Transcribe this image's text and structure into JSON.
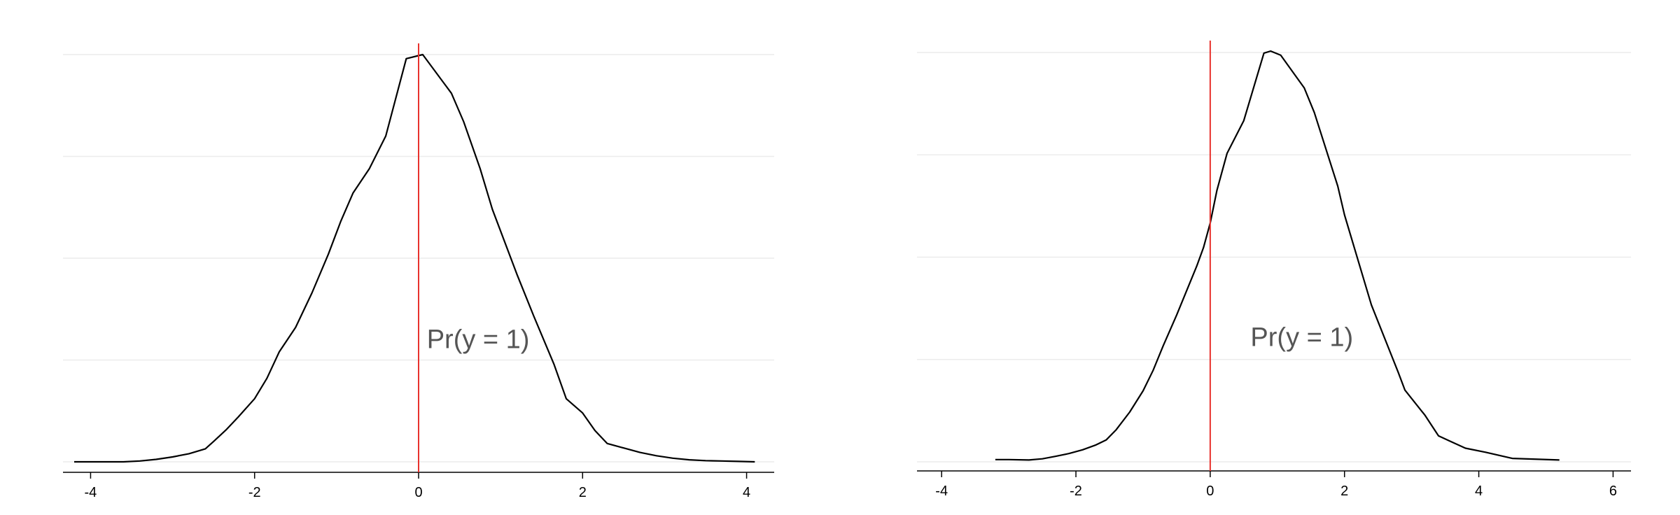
{
  "chart_data": [
    {
      "type": "line",
      "title": "",
      "xlabel": "",
      "ylabel": "",
      "xlim": [
        -4.2,
        4.2
      ],
      "ylim": [
        0,
        1
      ],
      "xticks": [
        "-4",
        "-2",
        "0",
        "2",
        "4"
      ],
      "ygrid_values": [
        0,
        0.25,
        0.5,
        0.75,
        1.0
      ],
      "grid": "horizontal",
      "legend": "none",
      "series": [
        {
          "color": "#000000",
          "x": [
            -4.2,
            -4.0,
            -3.8,
            -3.6,
            -3.4,
            -3.2,
            -3.0,
            -2.8,
            -2.6,
            -2.5,
            -2.35,
            -2.2,
            -2.0,
            -1.85,
            -1.7,
            -1.5,
            -1.3,
            -1.1,
            -0.95,
            -0.8,
            -0.6,
            -0.4,
            -0.15,
            0.05,
            0.4,
            0.55,
            0.75,
            0.9,
            1.2,
            1.4,
            1.65,
            1.8,
            2.0,
            2.15,
            2.3,
            2.5,
            2.7,
            2.9,
            3.1,
            3.3,
            3.5,
            3.7,
            3.9,
            4.1
          ],
          "y": [
            0.0,
            0.0,
            0.0,
            0.0,
            0.002,
            0.006,
            0.012,
            0.02,
            0.032,
            0.05,
            0.078,
            0.11,
            0.155,
            0.205,
            0.27,
            0.33,
            0.415,
            0.51,
            0.59,
            0.66,
            0.72,
            0.8,
            0.99,
            1.0,
            0.905,
            0.835,
            0.72,
            0.62,
            0.46,
            0.36,
            0.24,
            0.155,
            0.12,
            0.077,
            0.045,
            0.034,
            0.023,
            0.015,
            0.009,
            0.005,
            0.003,
            0.002,
            0.001,
            0.0
          ]
        }
      ],
      "vline": {
        "x": 0,
        "color": "#e8322d"
      },
      "annotation": {
        "text": "Pr(y = 1)",
        "x": 0.1,
        "y": 0.3
      }
    },
    {
      "type": "line",
      "title": "",
      "xlabel": "",
      "ylabel": "",
      "xlim": [
        -4.2,
        6.1
      ],
      "ylim": [
        0,
        1
      ],
      "xticks": [
        "-4",
        "-2",
        "0",
        "2",
        "4",
        "6"
      ],
      "ygrid_values": [
        0,
        0.25,
        0.5,
        0.75,
        1.0
      ],
      "grid": "horizontal",
      "legend": "none",
      "series": [
        {
          "color": "#000000",
          "x": [
            -3.2,
            -3.0,
            -2.7,
            -2.5,
            -2.3,
            -2.1,
            -1.9,
            -1.7,
            -1.55,
            -1.4,
            -1.2,
            -1.0,
            -0.85,
            -0.7,
            -0.5,
            -0.35,
            -0.2,
            -0.1,
            0.0,
            0.1,
            0.25,
            0.5,
            0.8,
            0.9,
            1.05,
            1.4,
            1.55,
            1.9,
            2.0,
            2.4,
            2.8,
            2.9,
            3.2,
            3.4,
            3.6,
            3.8,
            4.1,
            4.5,
            5.2
          ],
          "y": [
            0.002,
            0.002,
            0.001,
            0.004,
            0.01,
            0.017,
            0.026,
            0.038,
            0.05,
            0.075,
            0.118,
            0.17,
            0.22,
            0.28,
            0.355,
            0.415,
            0.475,
            0.52,
            0.58,
            0.66,
            0.75,
            0.83,
            0.995,
            1.0,
            0.99,
            0.91,
            0.85,
            0.67,
            0.6,
            0.38,
            0.215,
            0.172,
            0.11,
            0.06,
            0.045,
            0.03,
            0.02,
            0.005,
            0.001
          ]
        }
      ],
      "vline": {
        "x": 0,
        "color": "#e8322d"
      },
      "annotation": {
        "text": "Pr(y = 1)",
        "x": 0.6,
        "y": 0.3
      }
    }
  ]
}
